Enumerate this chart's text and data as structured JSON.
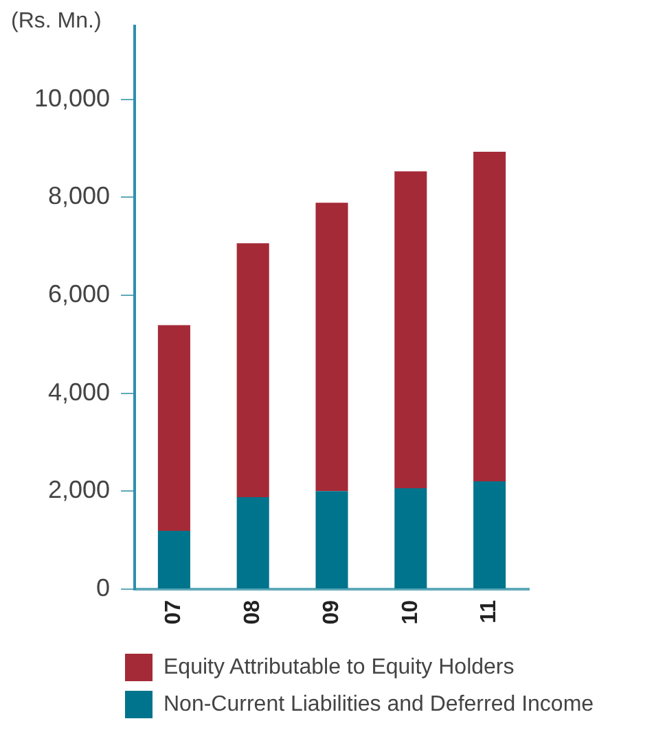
{
  "chart_data": {
    "type": "bar",
    "ylabel": "(Rs. Mn.)",
    "categories": [
      "07",
      "08",
      "09",
      "10",
      "11"
    ],
    "stacked": true,
    "series": [
      {
        "name": "Non-Current Liabilities and Deferred Income",
        "color": "#00748c",
        "values": [
          1190,
          1880,
          2000,
          2060,
          2200
        ]
      },
      {
        "name": "Equity Attributable to Equity Holders",
        "color": "#a52a38",
        "values": [
          4200,
          5180,
          5890,
          6470,
          6730
        ]
      }
    ],
    "ylim": [
      0,
      11500
    ],
    "yticks": [
      0,
      {
        "value": 2000,
        "label": "2,000"
      },
      {
        "value": 4000,
        "label": "4,000"
      },
      {
        "value": 6000,
        "label": "6,000"
      },
      {
        "value": 8000,
        "label": "8,000"
      },
      {
        "value": 10000,
        "label": "10,000"
      }
    ],
    "grid": false,
    "legend": "bottom"
  }
}
